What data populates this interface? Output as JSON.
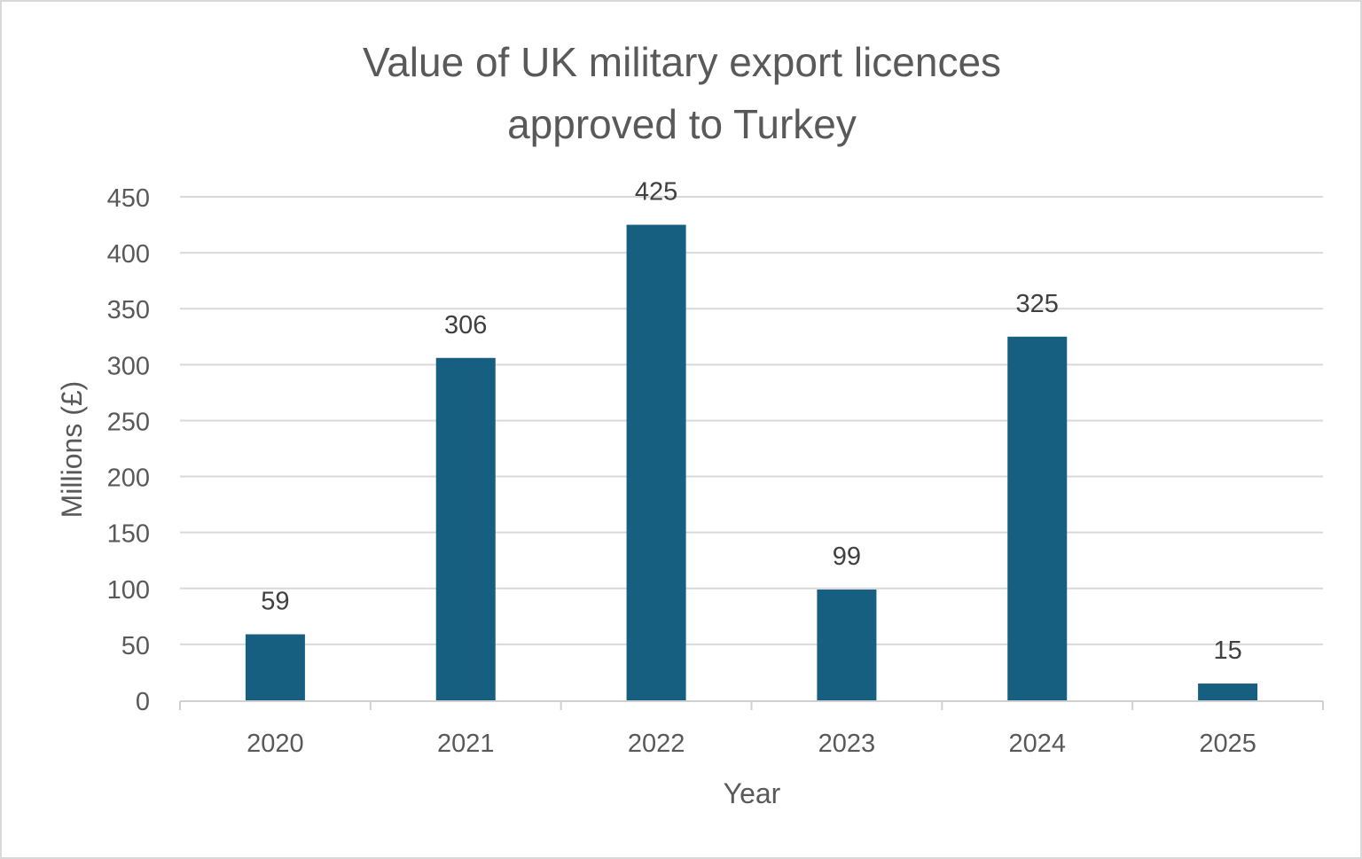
{
  "chart_data": {
    "type": "bar",
    "title": [
      "Value of UK military export licences",
      "approved to Turkey"
    ],
    "xlabel": "Year",
    "ylabel": "Millions (£)",
    "categories": [
      "2020",
      "2021",
      "2022",
      "2023",
      "2024",
      "2025"
    ],
    "values": [
      59,
      306,
      425,
      99,
      325,
      15
    ],
    "data_labels": [
      "59",
      "306",
      "425",
      "99",
      "325",
      "15"
    ],
    "ylim": [
      0,
      450
    ],
    "yticks": [
      0,
      50,
      100,
      150,
      200,
      250,
      300,
      350,
      400,
      450
    ],
    "grid": true,
    "legend": "none",
    "bar_color": "#175f80"
  }
}
